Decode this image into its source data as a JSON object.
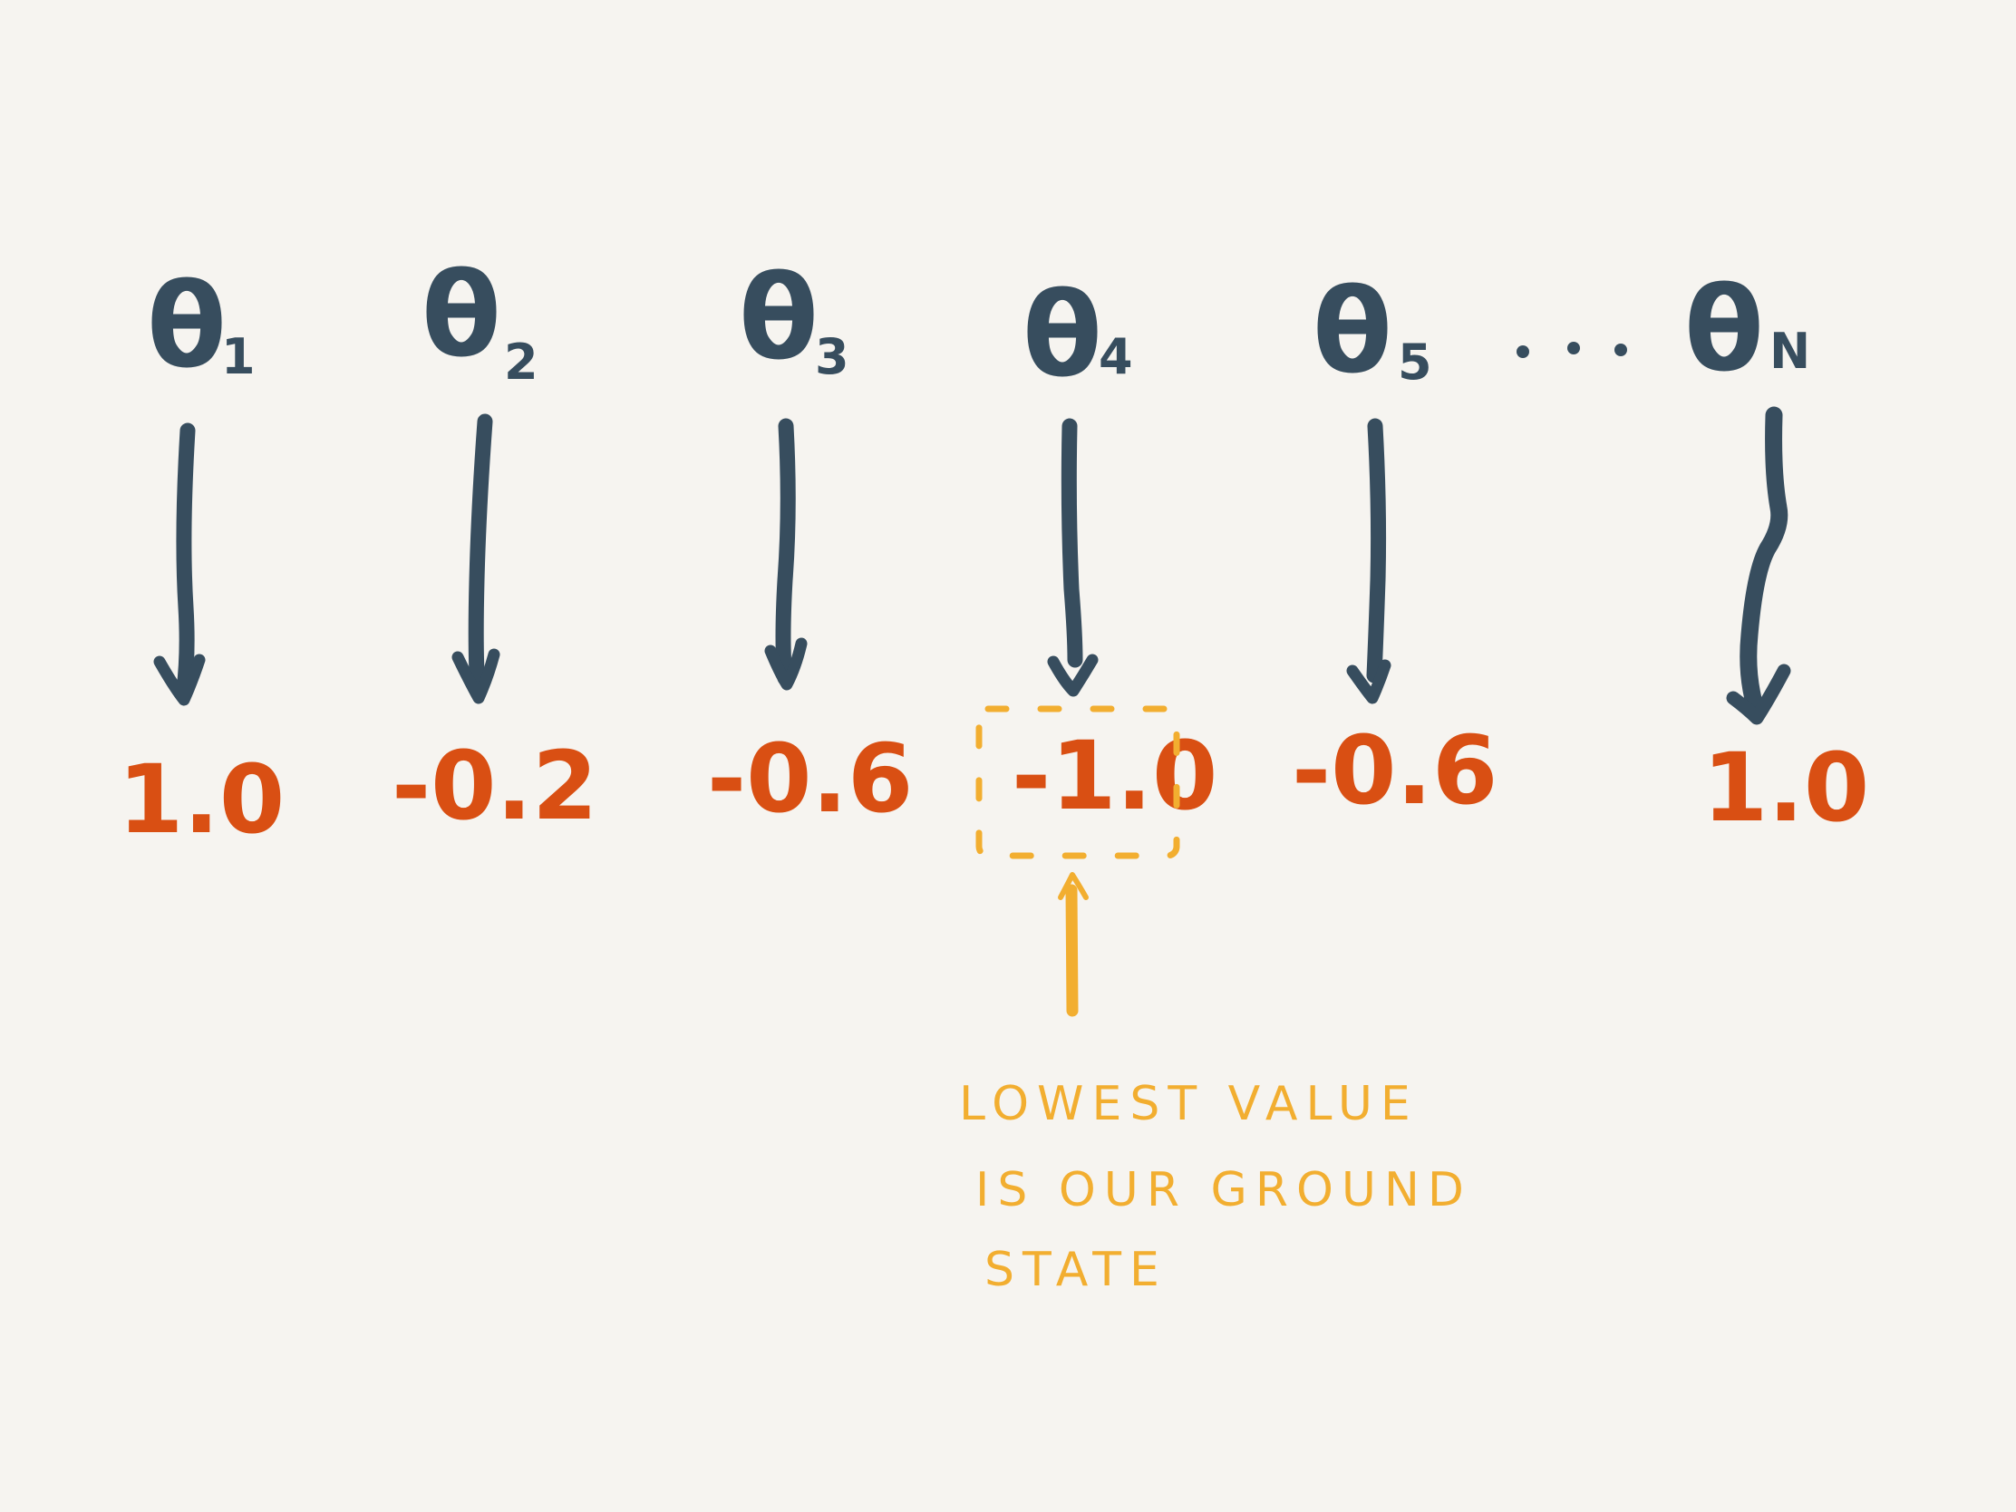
{
  "colors": {
    "background": "#f6f4f0",
    "parameter": "#374d5e",
    "value": "#d94f13",
    "highlight": "#f2ae30"
  },
  "parameters": [
    {
      "symbol": "θ",
      "subscript": "1"
    },
    {
      "symbol": "θ",
      "subscript": "2"
    },
    {
      "symbol": "θ",
      "subscript": "3"
    },
    {
      "symbol": "θ",
      "subscript": "4"
    },
    {
      "symbol": "θ",
      "subscript": "5"
    },
    {
      "symbol": "θ",
      "subscript": "N"
    }
  ],
  "ellipsis": "...",
  "values": [
    "1.0",
    "-0.2",
    "-0.6",
    "-1.0",
    "-0.6",
    "1.0"
  ],
  "highlighted_index": 3,
  "annotation": {
    "lines": [
      "LOWEST VALUE",
      "IS OUR GROUND",
      "STATE"
    ]
  }
}
